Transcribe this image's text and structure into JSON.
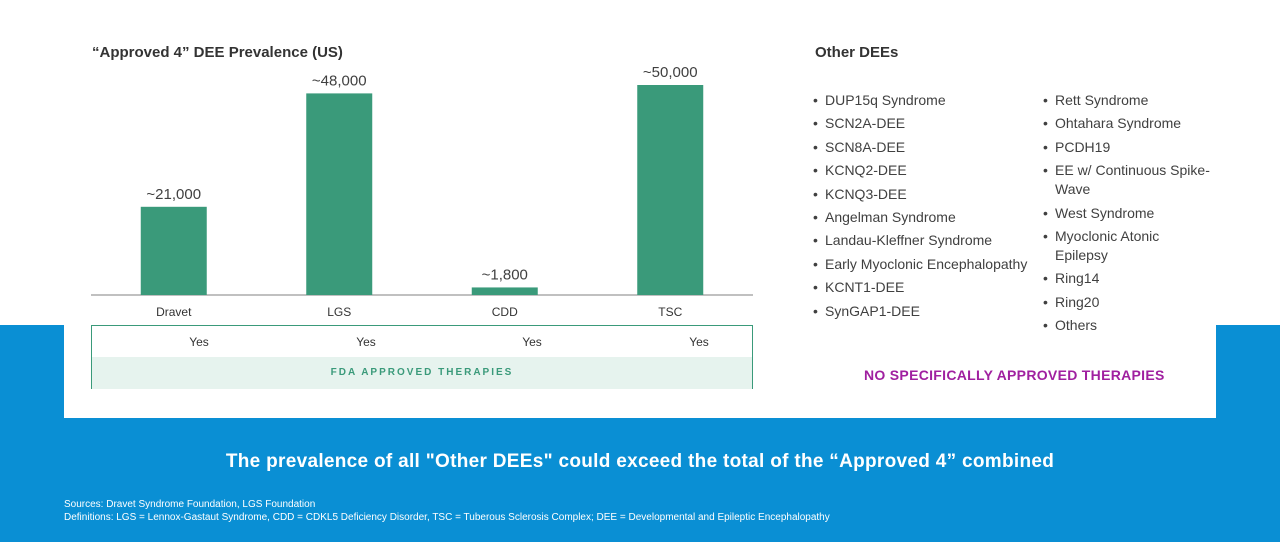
{
  "chart_data": {
    "type": "bar",
    "title": "“Approved 4” DEE Prevalence (US)",
    "categories": [
      "Dravet",
      "LGS",
      "CDD",
      "TSC"
    ],
    "values": [
      21000,
      48000,
      1800,
      50000
    ],
    "data_labels": [
      "~21,000",
      "~48,000",
      "~1,800",
      "~50,000"
    ],
    "ylim": [
      0,
      55000
    ],
    "grid": false,
    "bar_color": "#3a9a7a"
  },
  "approved_row": {
    "values": [
      "Yes",
      "Yes",
      "Yes",
      "Yes"
    ],
    "band_label": "FDA APPROVED THERAPIES"
  },
  "other_dees": {
    "title": "Other DEEs",
    "col1": [
      "DUP15q Syndrome",
      "SCN2A-DEE",
      "SCN8A-DEE",
      "KCNQ2-DEE",
      "KCNQ3-DEE",
      "Angelman Syndrome",
      "Landau-Kleffner Syndrome",
      "Early Myoclonic Encephalopathy",
      "KCNT1-DEE",
      "SynGAP1-DEE"
    ],
    "col2": [
      "Rett Syndrome",
      "Ohtahara Syndrome",
      "PCDH19",
      "EE w/ Continuous Spike-Wave",
      "West Syndrome",
      "Myoclonic Atonic Epilepsy",
      "Ring14",
      "Ring20",
      "Others"
    ],
    "no_approved": "NO SPECIFICALLY APPROVED THERAPIES",
    "accent_color": "#a020a0"
  },
  "headline": "The prevalence of all \"Other DEEs\" could exceed the total of the “Approved 4” combined",
  "footnotes": {
    "sources": "Sources: Dravet Syndrome Foundation, LGS Foundation",
    "definitions": "Definitions: LGS = Lennox-Gastaut Syndrome, CDD = CDKL5 Deficiency Disorder, TSC = Tuberous Sclerosis Complex; DEE = Developmental and Epileptic Encephalopathy"
  },
  "colors": {
    "background_blue": "#0a8fd4",
    "teal": "#3a9a7a",
    "light_teal": "#e6f3ee"
  }
}
